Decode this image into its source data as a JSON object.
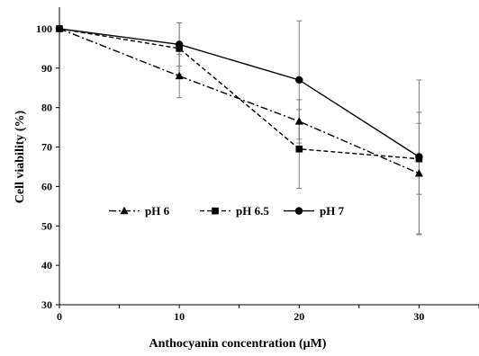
{
  "chart_data": {
    "type": "line",
    "title": "",
    "xlabel": "Anthocyanin concentration (μM)",
    "ylabel": "Cell viability (%)",
    "x": [
      0,
      10,
      20,
      30
    ],
    "x_ticks": [
      "0",
      "10",
      "20",
      "30"
    ],
    "y_ticks": [
      "30",
      "40",
      "50",
      "60",
      "70",
      "80",
      "90",
      "100"
    ],
    "xlim": [
      0,
      35
    ],
    "ylim": [
      30,
      105
    ],
    "grid": false,
    "legend_position": "center-left",
    "series": [
      {
        "name": "pH 6",
        "marker": "triangle",
        "line_style": "dash-dot",
        "values": [
          100,
          88,
          76.5,
          63.3
        ],
        "error": [
          0,
          5.5,
          5.5,
          15.5
        ]
      },
      {
        "name": "pH 6.5",
        "marker": "square",
        "line_style": "dashed",
        "values": [
          100,
          95,
          69.5,
          67
        ],
        "error": [
          0,
          6.5,
          10,
          9
        ]
      },
      {
        "name": "pH 7",
        "marker": "circle",
        "line_style": "solid",
        "values": [
          100,
          96,
          87,
          67.5
        ],
        "error": [
          0,
          5.5,
          15,
          19.5
        ]
      }
    ],
    "colors": {
      "line": "#000000",
      "error_bar": "#7f7f7f"
    }
  }
}
